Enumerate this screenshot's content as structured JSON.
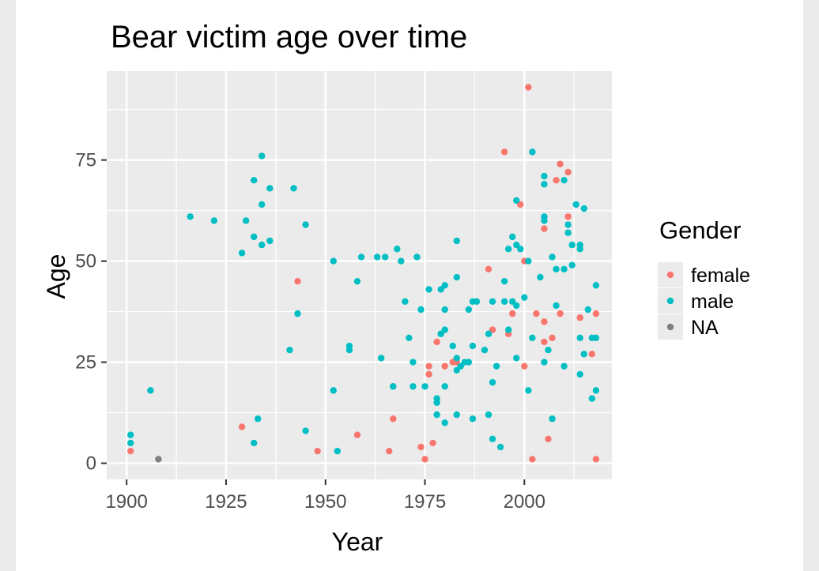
{
  "chart_data": {
    "type": "scatter",
    "title": "Bear victim age over time",
    "xlabel": "Year",
    "ylabel": "Age",
    "xlim": [
      1895,
      2022
    ],
    "ylim": [
      -4,
      97
    ],
    "xticks": [
      1900,
      1925,
      1950,
      1975,
      2000
    ],
    "yticks": [
      0,
      25,
      50,
      75
    ],
    "grid": true,
    "legend": {
      "title": "Gender",
      "position": "right"
    },
    "colors": {
      "female": "#f8766d",
      "male": "#00bfc4",
      "NA": "#7f7f7f",
      "panel": "#ebebeb",
      "grid": "#ffffff"
    },
    "series": [
      {
        "name": "female",
        "points": [
          [
            1901,
            3
          ],
          [
            1929,
            9
          ],
          [
            1943,
            45
          ],
          [
            1948,
            3
          ],
          [
            1958,
            7
          ],
          [
            1966,
            3
          ],
          [
            1967,
            11
          ],
          [
            1967,
            19
          ],
          [
            1974,
            4
          ],
          [
            1975,
            1
          ],
          [
            1976,
            22
          ],
          [
            1976,
            24
          ],
          [
            1977,
            5
          ],
          [
            1978,
            30
          ],
          [
            1980,
            24
          ],
          [
            1982,
            25
          ],
          [
            1983,
            25
          ],
          [
            1991,
            48
          ],
          [
            1992,
            33
          ],
          [
            1995,
            77
          ],
          [
            1996,
            32
          ],
          [
            1997,
            37
          ],
          [
            1999,
            64
          ],
          [
            2000,
            50
          ],
          [
            2000,
            24
          ],
          [
            2002,
            1
          ],
          [
            2001,
            93
          ],
          [
            2003,
            37
          ],
          [
            2005,
            30
          ],
          [
            2005,
            35
          ],
          [
            2005,
            58
          ],
          [
            2006,
            6
          ],
          [
            2007,
            31
          ],
          [
            2008,
            70
          ],
          [
            2009,
            74
          ],
          [
            2011,
            72
          ],
          [
            2011,
            61
          ],
          [
            2014,
            36
          ],
          [
            2017,
            27
          ],
          [
            2018,
            37
          ],
          [
            2018,
            1
          ],
          [
            2009,
            37
          ]
        ]
      },
      {
        "name": "male",
        "points": [
          [
            1901,
            7
          ],
          [
            1901,
            5
          ],
          [
            1906,
            18
          ],
          [
            1916,
            61
          ],
          [
            1922,
            60
          ],
          [
            1929,
            52
          ],
          [
            1930,
            60
          ],
          [
            1932,
            5
          ],
          [
            1932,
            56
          ],
          [
            1932,
            70
          ],
          [
            1933,
            11
          ],
          [
            1934,
            54
          ],
          [
            1934,
            64
          ],
          [
            1934,
            76
          ],
          [
            1936,
            55
          ],
          [
            1936,
            68
          ],
          [
            1941,
            28
          ],
          [
            1942,
            68
          ],
          [
            1943,
            37
          ],
          [
            1945,
            59
          ],
          [
            1945,
            8
          ],
          [
            1952,
            18
          ],
          [
            1952,
            50
          ],
          [
            1953,
            3
          ],
          [
            1956,
            28
          ],
          [
            1956,
            29
          ],
          [
            1958,
            45
          ],
          [
            1959,
            51
          ],
          [
            1963,
            51
          ],
          [
            1964,
            26
          ],
          [
            1965,
            51
          ],
          [
            1967,
            19
          ],
          [
            1968,
            53
          ],
          [
            1969,
            50
          ],
          [
            1970,
            40
          ],
          [
            1971,
            31
          ],
          [
            1972,
            19
          ],
          [
            1972,
            25
          ],
          [
            1973,
            51
          ],
          [
            1974,
            38
          ],
          [
            1975,
            19
          ],
          [
            1976,
            43
          ],
          [
            1978,
            12
          ],
          [
            1978,
            15
          ],
          [
            1978,
            16
          ],
          [
            1979,
            32
          ],
          [
            1979,
            43
          ],
          [
            1980,
            10
          ],
          [
            1980,
            19
          ],
          [
            1980,
            33
          ],
          [
            1980,
            38
          ],
          [
            1980,
            44
          ],
          [
            1982,
            29
          ],
          [
            1983,
            12
          ],
          [
            1983,
            23
          ],
          [
            1983,
            26
          ],
          [
            1983,
            46
          ],
          [
            1983,
            55
          ],
          [
            1984,
            24
          ],
          [
            1985,
            25
          ],
          [
            1986,
            25
          ],
          [
            1986,
            38
          ],
          [
            1987,
            11
          ],
          [
            1987,
            29
          ],
          [
            1987,
            40
          ],
          [
            1988,
            40
          ],
          [
            1990,
            28
          ],
          [
            1991,
            12
          ],
          [
            1991,
            32
          ],
          [
            1992,
            6
          ],
          [
            1992,
            20
          ],
          [
            1992,
            40
          ],
          [
            1993,
            24
          ],
          [
            1994,
            4
          ],
          [
            1995,
            40
          ],
          [
            1995,
            45
          ],
          [
            1996,
            33
          ],
          [
            1996,
            53
          ],
          [
            1997,
            40
          ],
          [
            1997,
            56
          ],
          [
            1998,
            26
          ],
          [
            1998,
            39
          ],
          [
            1998,
            54
          ],
          [
            1998,
            65
          ],
          [
            1999,
            53
          ],
          [
            2000,
            41
          ],
          [
            2001,
            18
          ],
          [
            2001,
            50
          ],
          [
            2002,
            31
          ],
          [
            2002,
            77
          ],
          [
            2004,
            46
          ],
          [
            2005,
            25
          ],
          [
            2005,
            60
          ],
          [
            2005,
            61
          ],
          [
            2005,
            69
          ],
          [
            2005,
            71
          ],
          [
            2006,
            28
          ],
          [
            2007,
            11
          ],
          [
            2007,
            51
          ],
          [
            2008,
            39
          ],
          [
            2008,
            48
          ],
          [
            2010,
            24
          ],
          [
            2010,
            48
          ],
          [
            2010,
            70
          ],
          [
            2011,
            57
          ],
          [
            2011,
            59
          ],
          [
            2012,
            49
          ],
          [
            2012,
            54
          ],
          [
            2013,
            64
          ],
          [
            2014,
            22
          ],
          [
            2014,
            31
          ],
          [
            2014,
            53
          ],
          [
            2014,
            54
          ],
          [
            2015,
            27
          ],
          [
            2015,
            63
          ],
          [
            2016,
            38
          ],
          [
            2017,
            16
          ],
          [
            2017,
            31
          ],
          [
            2018,
            18
          ],
          [
            2018,
            31
          ],
          [
            2018,
            44
          ]
        ]
      },
      {
        "name": "NA",
        "points": [
          [
            1908,
            1
          ]
        ]
      }
    ]
  }
}
